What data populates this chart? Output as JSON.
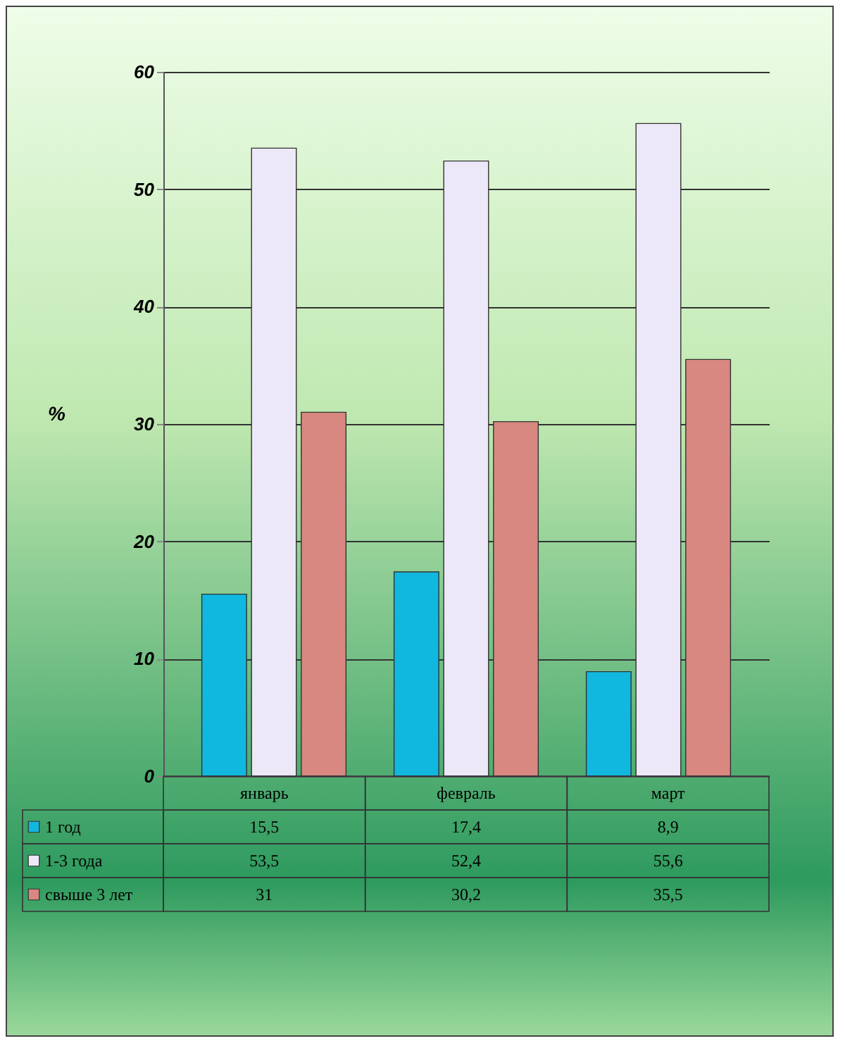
{
  "chart_data": {
    "type": "bar",
    "ylabel": "%",
    "categories": [
      "январь",
      "февраль",
      "март"
    ],
    "series": [
      {
        "name": "1 год",
        "color": "#10b8e0",
        "values": [
          15.5,
          17.4,
          8.9
        ],
        "value_labels": [
          "15,5",
          "17,4",
          "8,9"
        ]
      },
      {
        "name": "1-3 года",
        "color": "#ece8f8",
        "values": [
          53.5,
          52.4,
          55.6
        ],
        "value_labels": [
          "53,5",
          "52,4",
          "55,6"
        ]
      },
      {
        "name": "свыше 3 лет",
        "color": "#d88880",
        "values": [
          31,
          30.2,
          35.5
        ],
        "value_labels": [
          "31",
          "30,2",
          "35,5"
        ]
      }
    ],
    "ylim": [
      0,
      60
    ],
    "yticks": [
      0,
      10,
      20,
      30,
      40,
      50,
      60
    ],
    "grid": "y",
    "legend": "bottom"
  }
}
